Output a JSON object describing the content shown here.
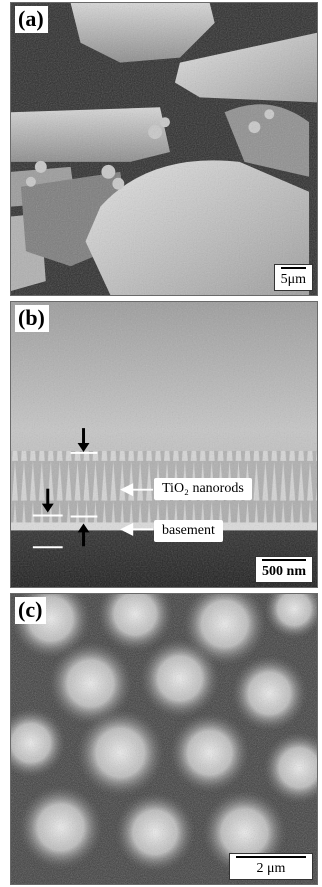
{
  "panels": [
    {
      "label": "(a)",
      "scale_bar": "5μm",
      "image": "SEM micrograph of plate-like aggregates and fine granular particles"
    },
    {
      "label": "(b)",
      "scale_bar": "500 nm",
      "image": "SEM cross-section of aligned nanorod array on a basement layer",
      "annotations": {
        "nanorods": "TiO₂ nanorods",
        "basement": "basement"
      }
    },
    {
      "label": "(c)",
      "scale_bar": "2 μm",
      "image": "SEM micrograph of flower-like clusters of nanorods"
    }
  ]
}
